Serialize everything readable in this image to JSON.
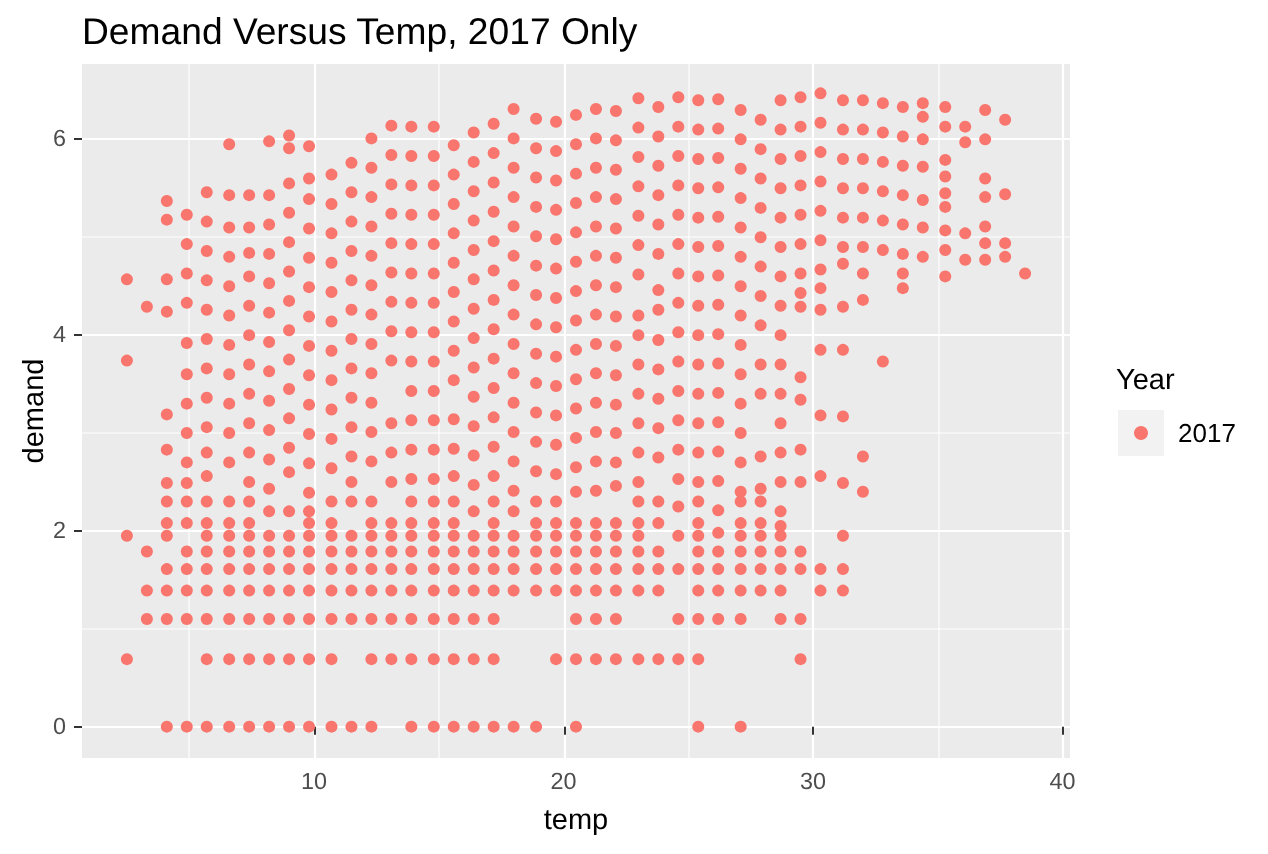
{
  "chart_data": {
    "type": "scatter",
    "title": "Demand Versus Temp, 2017 Only",
    "xlabel": "temp",
    "ylabel": "demand",
    "legend_title": "Year",
    "x": [
      2.5,
      2.5,
      2.5,
      2.5,
      3.3,
      3.3,
      3.3,
      3.3,
      4.1,
      4.1,
      4.1,
      4.1,
      4.1,
      4.1,
      4.1,
      4.1,
      4.1,
      4.1,
      4.1,
      4.1,
      4.1,
      4.1,
      4.9,
      4.9,
      4.9,
      4.9,
      4.9,
      4.9,
      4.9,
      4.9,
      4.9,
      4.9,
      4.9,
      4.9,
      4.9,
      4.9,
      4.9,
      4.9,
      4.9,
      5.7,
      5.7,
      5.7,
      5.7,
      5.7,
      5.7,
      5.7,
      5.7,
      5.7,
      5.7,
      5.7,
      5.7,
      5.7,
      5.7,
      5.7,
      5.7,
      5.7,
      5.7,
      5.7,
      5.7,
      6.6,
      6.6,
      6.6,
      6.6,
      6.6,
      6.6,
      6.6,
      6.6,
      6.6,
      6.6,
      6.6,
      6.6,
      6.6,
      6.6,
      6.6,
      6.6,
      6.6,
      6.6,
      6.6,
      6.6,
      7.4,
      7.4,
      7.4,
      7.4,
      7.4,
      7.4,
      7.4,
      7.4,
      7.4,
      7.4,
      7.4,
      7.4,
      7.4,
      7.4,
      7.4,
      7.4,
      7.4,
      7.4,
      7.4,
      7.4,
      8.2,
      8.2,
      8.2,
      8.2,
      8.2,
      8.2,
      8.2,
      8.2,
      8.2,
      8.2,
      8.2,
      8.2,
      8.2,
      8.2,
      8.2,
      8.2,
      8.2,
      8.2,
      8.2,
      8.2,
      9,
      9,
      9,
      9,
      9,
      9,
      9,
      9,
      9,
      9,
      9,
      9,
      9,
      9,
      9,
      9,
      9,
      9,
      9,
      9,
      9,
      9.8,
      9.8,
      9.8,
      9.8,
      9.8,
      9.8,
      9.8,
      9.8,
      9.8,
      9.8,
      9.8,
      9.8,
      9.8,
      9.8,
      9.8,
      9.8,
      9.8,
      9.8,
      9.8,
      9.8,
      9.8,
      9.8,
      10.7,
      10.7,
      10.7,
      10.7,
      10.7,
      10.7,
      10.7,
      10.7,
      10.7,
      10.7,
      10.7,
      10.7,
      10.7,
      10.7,
      10.7,
      10.7,
      10.7,
      10.7,
      10.7,
      10.7,
      11.5,
      11.5,
      11.5,
      11.5,
      11.5,
      11.5,
      11.5,
      11.5,
      11.5,
      11.5,
      11.5,
      11.5,
      11.5,
      11.5,
      11.5,
      11.5,
      11.5,
      11.5,
      11.5,
      12.3,
      12.3,
      12.3,
      12.3,
      12.3,
      12.3,
      12.3,
      12.3,
      12.3,
      12.3,
      12.3,
      12.3,
      12.3,
      12.3,
      12.3,
      12.3,
      12.3,
      12.3,
      12.3,
      12.3,
      12.3,
      13.1,
      13.1,
      13.1,
      13.1,
      13.1,
      13.1,
      13.1,
      13.1,
      13.1,
      13.1,
      13.1,
      13.1,
      13.1,
      13.1,
      13.1,
      13.1,
      13.1,
      13.1,
      13.1,
      13.9,
      13.9,
      13.9,
      13.9,
      13.9,
      13.9,
      13.9,
      13.9,
      13.9,
      13.9,
      13.9,
      13.9,
      13.9,
      13.9,
      13.9,
      13.9,
      13.9,
      13.9,
      13.9,
      13.9,
      13.9,
      13.9,
      14.8,
      14.8,
      14.8,
      14.8,
      14.8,
      14.8,
      14.8,
      14.8,
      14.8,
      14.8,
      14.8,
      14.8,
      14.8,
      14.8,
      14.8,
      14.8,
      14.8,
      14.8,
      14.8,
      14.8,
      14.8,
      14.8,
      15.6,
      15.6,
      15.6,
      15.6,
      15.6,
      15.6,
      15.6,
      15.6,
      15.6,
      15.6,
      15.6,
      15.6,
      15.6,
      15.6,
      15.6,
      15.6,
      15.6,
      15.6,
      15.6,
      15.6,
      15.6,
      16.4,
      16.4,
      16.4,
      16.4,
      16.4,
      16.4,
      16.4,
      16.4,
      16.4,
      16.4,
      16.4,
      16.4,
      16.4,
      16.4,
      16.4,
      16.4,
      16.4,
      16.4,
      16.4,
      16.4,
      16.4,
      17.2,
      17.2,
      17.2,
      17.2,
      17.2,
      17.2,
      17.2,
      17.2,
      17.2,
      17.2,
      17.2,
      17.2,
      17.2,
      17.2,
      17.2,
      17.2,
      17.2,
      17.2,
      17.2,
      17.2,
      17.2,
      17.2,
      18,
      18,
      18,
      18,
      18,
      18,
      18,
      18,
      18,
      18,
      18,
      18,
      18,
      18,
      18,
      18,
      18,
      18,
      18,
      18,
      18.9,
      18.9,
      18.9,
      18.9,
      18.9,
      18.9,
      18.9,
      18.9,
      18.9,
      18.9,
      18.9,
      18.9,
      18.9,
      18.9,
      18.9,
      18.9,
      18.9,
      18.9,
      18.9,
      18.9,
      19.7,
      19.7,
      19.7,
      19.7,
      19.7,
      19.7,
      19.7,
      19.7,
      19.7,
      19.7,
      19.7,
      19.7,
      19.7,
      19.7,
      19.7,
      19.7,
      19.7,
      19.7,
      19.7,
      19.7,
      20.5,
      20.5,
      20.5,
      20.5,
      20.5,
      20.5,
      20.5,
      20.5,
      20.5,
      20.5,
      20.5,
      20.5,
      20.5,
      20.5,
      20.5,
      20.5,
      20.5,
      20.5,
      20.5,
      20.5,
      20.5,
      20.5,
      21.3,
      21.3,
      21.3,
      21.3,
      21.3,
      21.3,
      21.3,
      21.3,
      21.3,
      21.3,
      21.3,
      21.3,
      21.3,
      21.3,
      21.3,
      21.3,
      21.3,
      21.3,
      21.3,
      21.3,
      21.3,
      22.1,
      22.1,
      22.1,
      22.1,
      22.1,
      22.1,
      22.1,
      22.1,
      22.1,
      22.1,
      22.1,
      22.1,
      22.1,
      22.1,
      22.1,
      22.1,
      22.1,
      22.1,
      22.1,
      22.1,
      22.1,
      23,
      23,
      23,
      23,
      23,
      23,
      23,
      23,
      23,
      23,
      23,
      23,
      23,
      23,
      23,
      23,
      23,
      23,
      23,
      23,
      23,
      23.8,
      23.8,
      23.8,
      23.8,
      23.8,
      23.8,
      23.8,
      23.8,
      23.8,
      23.8,
      23.8,
      23.8,
      23.8,
      23.8,
      23.8,
      23.8,
      23.8,
      23.8,
      23.8,
      24.6,
      24.6,
      24.6,
      24.6,
      24.6,
      24.6,
      24.6,
      24.6,
      24.6,
      24.6,
      24.6,
      24.6,
      24.6,
      24.6,
      24.6,
      24.6,
      24.6,
      24.6,
      24.6,
      25.4,
      25.4,
      25.4,
      25.4,
      25.4,
      25.4,
      25.4,
      25.4,
      25.4,
      25.4,
      25.4,
      25.4,
      25.4,
      25.4,
      25.4,
      25.4,
      25.4,
      25.4,
      25.4,
      25.4,
      25.4,
      25.4,
      25.4,
      26.2,
      26.2,
      26.2,
      26.2,
      26.2,
      26.2,
      26.2,
      26.2,
      26.2,
      26.2,
      26.2,
      26.2,
      26.2,
      26.2,
      26.2,
      26.2,
      26.2,
      26.2,
      26.2,
      26.2,
      27.1,
      27.1,
      27.1,
      27.1,
      27.1,
      27.1,
      27.1,
      27.1,
      27.1,
      27.1,
      27.1,
      27.1,
      27.1,
      27.1,
      27.1,
      27.1,
      27.1,
      27.1,
      27.1,
      27.1,
      27.1,
      27.1,
      27.9,
      27.9,
      27.9,
      27.9,
      27.9,
      27.9,
      27.9,
      27.9,
      27.9,
      27.9,
      27.9,
      27.9,
      27.9,
      27.9,
      27.9,
      27.9,
      27.9,
      27.9,
      28.7,
      28.7,
      28.7,
      28.7,
      28.7,
      28.7,
      28.7,
      28.7,
      28.7,
      28.7,
      28.7,
      28.7,
      28.7,
      28.7,
      28.7,
      28.7,
      28.7,
      28.7,
      28.7,
      28.7,
      28.7,
      29.5,
      29.5,
      29.5,
      29.5,
      29.5,
      29.5,
      29.5,
      29.5,
      29.5,
      29.5,
      29.5,
      29.5,
      29.5,
      29.5,
      29.5,
      29.5,
      29.5,
      30.3,
      30.3,
      30.3,
      30.3,
      30.3,
      30.3,
      30.3,
      30.3,
      30.3,
      30.3,
      30.3,
      30.3,
      30.3,
      30.3,
      31.2,
      31.2,
      31.2,
      31.2,
      31.2,
      31.2,
      31.2,
      31.2,
      31.2,
      31.2,
      31.2,
      31.2,
      31.2,
      31.2,
      32,
      32,
      32,
      32,
      32,
      32,
      32,
      32,
      32,
      32,
      32.8,
      32.8,
      32.8,
      32.8,
      32.8,
      32.8,
      32.8,
      33.6,
      33.6,
      33.6,
      33.6,
      33.6,
      33.6,
      33.6,
      33.6,
      34.4,
      34.4,
      34.4,
      34.4,
      34.4,
      34.4,
      34.4,
      35.3,
      35.3,
      35.3,
      35.3,
      35.3,
      35.3,
      35.3,
      35.3,
      35.3,
      36.1,
      36.1,
      36.1,
      36.1,
      36.9,
      36.9,
      36.9,
      36.9,
      36.9,
      36.9,
      36.9,
      37.7,
      37.7,
      37.7,
      37.7,
      38.5
    ],
    "series": [
      {
        "name": "2017",
        "color": "#f8766d",
        "values": [
          4.57,
          3.74,
          1.95,
          0.69,
          4.29,
          1.79,
          1.39,
          1.1,
          5.37,
          5.18,
          4.57,
          4.24,
          3.19,
          2.83,
          2.49,
          2.3,
          2.08,
          1.95,
          1.61,
          1.39,
          1.1,
          0,
          5.23,
          4.93,
          4.63,
          4.33,
          3.92,
          3.6,
          3.3,
          3,
          2.7,
          2.49,
          2.3,
          2.08,
          1.79,
          1.61,
          1.39,
          1.1,
          0,
          5.46,
          5.16,
          4.86,
          4.56,
          4.26,
          3.96,
          3.66,
          3.36,
          3.06,
          2.8,
          2.56,
          2.3,
          2.08,
          1.95,
          1.79,
          1.61,
          1.39,
          1.1,
          0.69,
          0,
          5.95,
          5.43,
          5.1,
          4.8,
          4.5,
          4.2,
          3.9,
          3.6,
          3.3,
          3,
          2.7,
          2.3,
          2.08,
          1.95,
          1.79,
          1.61,
          1.39,
          1.1,
          0.69,
          0,
          5.43,
          5.1,
          4.84,
          4.6,
          4.3,
          4,
          3.7,
          3.4,
          3.1,
          2.8,
          2.5,
          2.3,
          2.08,
          1.95,
          1.79,
          1.61,
          1.39,
          1.1,
          0.69,
          0,
          5.98,
          5.43,
          5.13,
          4.83,
          4.53,
          4.23,
          3.93,
          3.63,
          3.33,
          3.03,
          2.73,
          2.43,
          2.2,
          1.95,
          1.79,
          1.61,
          1.39,
          1.1,
          0.69,
          0,
          6.04,
          5.91,
          5.55,
          5.25,
          4.95,
          4.65,
          4.35,
          4.05,
          3.75,
          3.45,
          3.15,
          2.85,
          2.6,
          2.2,
          1.95,
          1.79,
          1.61,
          1.39,
          1.1,
          0.69,
          0,
          5.93,
          5.6,
          5.39,
          5.09,
          4.79,
          4.49,
          4.19,
          3.89,
          3.59,
          3.29,
          2.99,
          2.69,
          2.39,
          2.2,
          2.08,
          1.95,
          1.79,
          1.61,
          1.39,
          1.1,
          0.69,
          0,
          5.64,
          5.34,
          5.04,
          4.74,
          4.44,
          4.14,
          3.84,
          3.54,
          3.24,
          2.94,
          2.64,
          2.3,
          2.08,
          1.95,
          1.79,
          1.61,
          1.39,
          1.1,
          0.69,
          0,
          5.76,
          5.46,
          5.16,
          4.86,
          4.56,
          4.26,
          3.96,
          3.66,
          3.36,
          3.06,
          2.76,
          2.5,
          2.3,
          1.95,
          1.79,
          1.61,
          1.39,
          1.1,
          0,
          6.01,
          5.71,
          5.41,
          5.11,
          4.81,
          4.51,
          4.21,
          3.91,
          3.61,
          3.31,
          3.01,
          2.71,
          2.3,
          2.08,
          1.95,
          1.79,
          1.61,
          1.39,
          1.1,
          0.69,
          0,
          6.14,
          5.84,
          5.54,
          5.24,
          4.94,
          4.64,
          4.34,
          4.04,
          3.74,
          3.1,
          2.8,
          2.5,
          2.08,
          1.95,
          1.79,
          1.61,
          1.39,
          1.1,
          0.69,
          6.13,
          5.83,
          5.53,
          5.23,
          4.93,
          4.63,
          4.33,
          4.03,
          3.73,
          3.43,
          3.13,
          2.83,
          2.53,
          2.3,
          2.08,
          1.95,
          1.79,
          1.61,
          1.39,
          1.1,
          0.69,
          0,
          6.13,
          5.83,
          5.53,
          5.23,
          4.93,
          4.63,
          4.33,
          4.03,
          3.73,
          3.43,
          3.13,
          2.83,
          2.53,
          2.3,
          2.08,
          1.95,
          1.79,
          1.61,
          1.39,
          1.1,
          0.69,
          0,
          5.94,
          5.64,
          5.34,
          5.04,
          4.74,
          4.44,
          4.14,
          3.84,
          3.54,
          3.14,
          2.84,
          2.56,
          2.3,
          2.08,
          1.95,
          1.79,
          1.61,
          1.39,
          1.1,
          0.69,
          0,
          6.07,
          5.77,
          5.47,
          5.17,
          4.87,
          4.57,
          4.27,
          3.97,
          3.67,
          3.37,
          3.07,
          2.77,
          2.47,
          2.2,
          1.95,
          1.79,
          1.61,
          1.39,
          1.1,
          0.69,
          0,
          6.16,
          5.86,
          5.56,
          5.26,
          4.96,
          4.66,
          4.36,
          4.06,
          3.76,
          3.46,
          3.16,
          2.86,
          2.56,
          2.3,
          2.08,
          1.95,
          1.79,
          1.61,
          1.39,
          1.1,
          0.69,
          0,
          6.31,
          6.01,
          5.71,
          5.41,
          5.11,
          4.81,
          4.51,
          4.21,
          3.91,
          3.61,
          3.31,
          3.01,
          2.71,
          2.41,
          2.2,
          1.95,
          1.79,
          1.61,
          1.39,
          0,
          6.21,
          5.91,
          5.61,
          5.31,
          5.01,
          4.71,
          4.41,
          4.11,
          3.81,
          3.51,
          3.21,
          2.91,
          2.61,
          2.3,
          2.08,
          1.95,
          1.79,
          1.61,
          1.39,
          0,
          6.18,
          5.88,
          5.58,
          5.28,
          4.98,
          4.68,
          4.38,
          4.08,
          3.78,
          3.48,
          3.18,
          2.88,
          2.58,
          2.3,
          2.08,
          1.95,
          1.79,
          1.61,
          1.39,
          0.69,
          6.25,
          5.95,
          5.65,
          5.35,
          5.05,
          4.75,
          4.45,
          4.15,
          3.85,
          3.55,
          3.25,
          2.95,
          2.65,
          2.4,
          2.08,
          1.95,
          1.79,
          1.61,
          1.39,
          1.1,
          0.69,
          0,
          6.31,
          6.01,
          5.71,
          5.41,
          5.11,
          4.81,
          4.51,
          4.21,
          3.91,
          3.61,
          3.31,
          3.01,
          2.71,
          2.41,
          2.08,
          1.95,
          1.79,
          1.61,
          1.39,
          1.1,
          0.69,
          6.29,
          5.99,
          5.69,
          5.39,
          5.09,
          4.79,
          4.49,
          4.19,
          3.89,
          3.59,
          3.29,
          3,
          2.7,
          2.46,
          2.08,
          1.95,
          1.79,
          1.61,
          1.39,
          1.1,
          0.69,
          6.42,
          6.12,
          5.82,
          5.52,
          5.22,
          4.92,
          4.62,
          4.2,
          4,
          3.7,
          3.4,
          3.1,
          2.8,
          2.5,
          2.3,
          2.08,
          1.95,
          1.79,
          1.61,
          1.39,
          0.69,
          6.33,
          6.03,
          5.73,
          5.43,
          5.13,
          4.83,
          4.46,
          4.26,
          3.95,
          3.65,
          3.35,
          3.05,
          2.75,
          2.3,
          2.08,
          1.79,
          1.61,
          1.39,
          0.69,
          6.43,
          6.13,
          5.83,
          5.53,
          5.23,
          4.93,
          4.63,
          4.33,
          4.03,
          3.73,
          3.43,
          3.13,
          2.83,
          2.53,
          2.25,
          1.95,
          1.61,
          1.1,
          0.69,
          6.4,
          6.1,
          5.8,
          5.5,
          5.2,
          4.9,
          4.6,
          4.3,
          4,
          3.7,
          3.4,
          3.1,
          2.8,
          2.5,
          2.3,
          2.08,
          1.95,
          1.79,
          1.61,
          1.39,
          1.1,
          0.69,
          0,
          6.41,
          6.11,
          5.81,
          5.51,
          5.21,
          4.91,
          4.61,
          4.31,
          4.01,
          3.71,
          3.41,
          3.11,
          2.81,
          2.51,
          2.21,
          1.98,
          1.79,
          1.61,
          1.39,
          1.1,
          6.3,
          6,
          5.7,
          5.4,
          5.1,
          4.8,
          4.5,
          4.2,
          3.9,
          3.6,
          3.3,
          3,
          2.7,
          2.4,
          2.3,
          2.08,
          1.95,
          1.79,
          1.61,
          1.39,
          1.1,
          0,
          6.2,
          5.9,
          5.6,
          5.3,
          5,
          4.7,
          4.4,
          4.1,
          3.7,
          3.4,
          2.76,
          2.43,
          2.3,
          2.08,
          1.95,
          1.79,
          1.61,
          1.39,
          6.4,
          6.1,
          5.8,
          5.5,
          5.2,
          4.9,
          4.6,
          4.3,
          4,
          3.7,
          3.4,
          3.1,
          2.8,
          2.5,
          2.2,
          2.05,
          1.95,
          1.79,
          1.61,
          1.39,
          1.1,
          6.43,
          6.13,
          5.83,
          5.53,
          5.23,
          4.93,
          4.63,
          4.43,
          4.29,
          3.57,
          3.34,
          2.83,
          2.5,
          1.79,
          1.61,
          1.1,
          0.69,
          6.47,
          6.17,
          5.87,
          5.57,
          5.27,
          4.97,
          4.67,
          4.48,
          4.26,
          3.85,
          3.18,
          2.56,
          1.61,
          1.39,
          6.4,
          6.1,
          5.8,
          5.5,
          5.2,
          4.9,
          4.73,
          4.29,
          3.85,
          3.17,
          2.49,
          1.95,
          1.61,
          1.39,
          6.4,
          6.1,
          5.8,
          5.5,
          5.2,
          4.9,
          4.63,
          4.36,
          2.76,
          2.4,
          6.37,
          6.07,
          5.77,
          5.47,
          5.17,
          4.87,
          3.73,
          6.33,
          6.03,
          5.73,
          5.43,
          5.13,
          4.83,
          4.63,
          4.48,
          6.37,
          6.23,
          6,
          5.72,
          5.38,
          5.1,
          4.8,
          6.33,
          6.13,
          5.79,
          5.62,
          5.45,
          5.31,
          5.07,
          4.87,
          4.6,
          6.13,
          5.97,
          5.04,
          4.77,
          6.3,
          6,
          5.6,
          5.41,
          5.11,
          4.94,
          4.77,
          6.2,
          5.44,
          4.94,
          4.8,
          4.63
        ]
      }
    ],
    "xlim": [
      0.7,
      40.3
    ],
    "ylim": [
      -0.32,
      6.77
    ],
    "xticks": [
      10,
      20,
      30,
      40
    ],
    "yticks": [
      0,
      2,
      4,
      6
    ],
    "grid": true,
    "legend": "right",
    "marker": "circle"
  }
}
